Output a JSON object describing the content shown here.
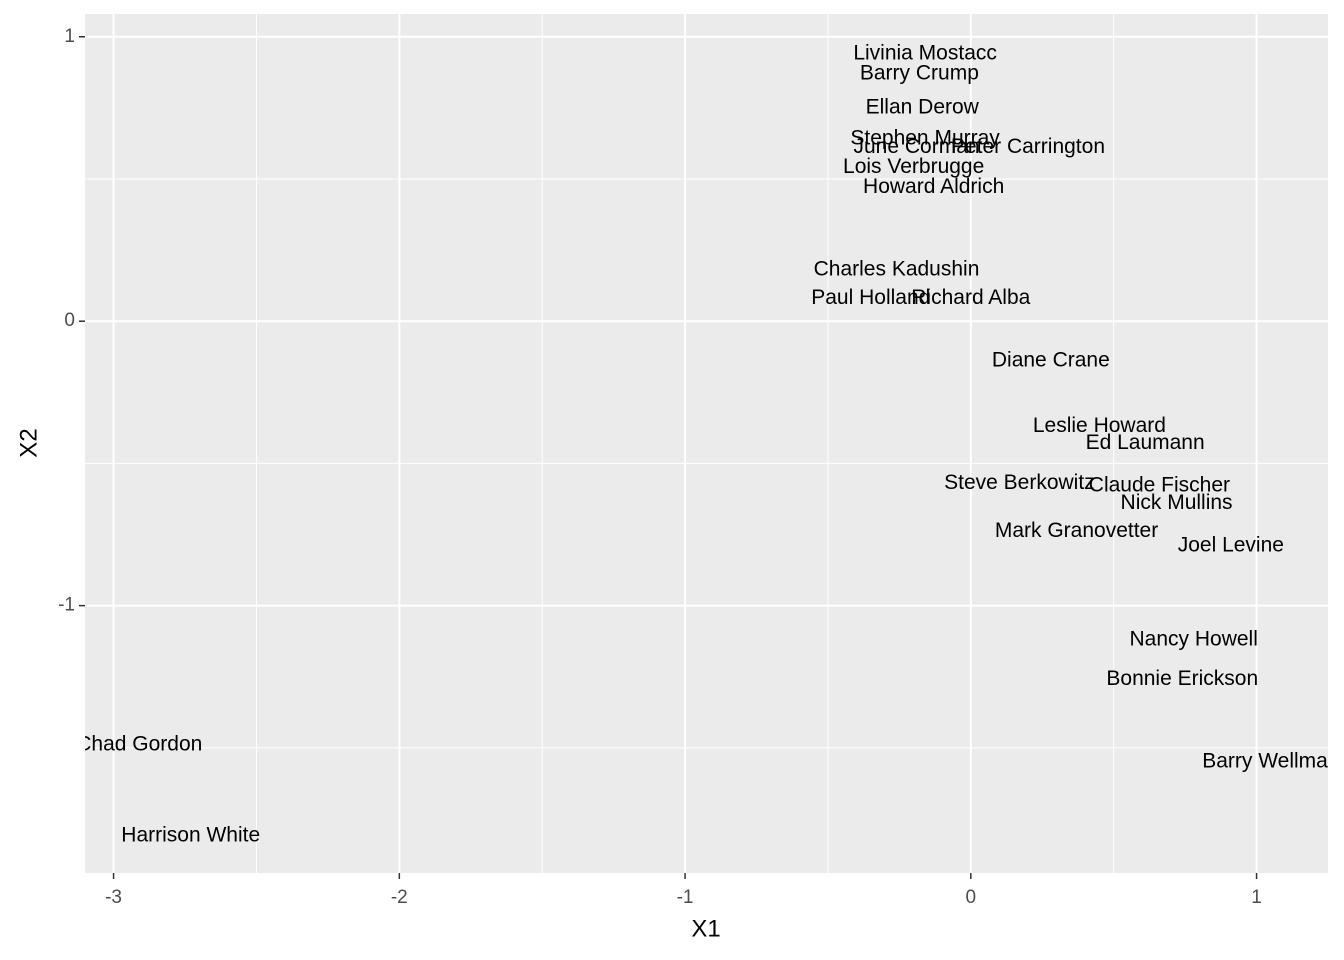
{
  "chart_data": {
    "type": "scatter",
    "x_label": "X1",
    "y_label": "X2",
    "labels": [
      "Livinia Mostacc",
      "Barry Crump",
      "Ellan Derow",
      "Stephen Murray",
      "June Corman",
      "Peter Carrington",
      "Lois Verbrugge",
      "Howard Aldrich",
      "Charles Kadushin",
      "Paul Holland",
      "Richard Alba",
      "Diane Crane",
      "Leslie Howard",
      "Ed Laumann",
      "Steve Berkowitz",
      "Claude Fischer",
      "Nick Mullins",
      "Mark Granovetter",
      "Joel Levine",
      "Nancy Howell",
      "Bonnie Erickson",
      "Chad Gordon",
      "Barry Wellman",
      "Harrison White"
    ],
    "x": [
      -0.16,
      -0.18,
      -0.17,
      -0.16,
      -0.19,
      0.2,
      -0.2,
      -0.13,
      -0.26,
      -0.35,
      0.0,
      0.28,
      0.45,
      0.61,
      0.17,
      0.66,
      0.72,
      0.37,
      0.91,
      0.78,
      0.74,
      -2.91,
      1.05,
      -2.73
    ],
    "values": [
      0.94,
      0.87,
      0.75,
      0.64,
      0.61,
      0.61,
      0.54,
      0.47,
      0.18,
      0.08,
      0.08,
      -0.14,
      -0.37,
      -0.43,
      -0.57,
      -0.58,
      -0.64,
      -0.74,
      -0.79,
      -1.12,
      -1.26,
      -1.49,
      -1.55,
      -1.81
    ],
    "xlim": [
      -3.1,
      1.25
    ],
    "ylim": [
      -1.94,
      1.08
    ],
    "xticks": [
      -3,
      -2,
      -1,
      0,
      1
    ],
    "yticks": [
      -1,
      0,
      1
    ],
    "grid": true
  }
}
